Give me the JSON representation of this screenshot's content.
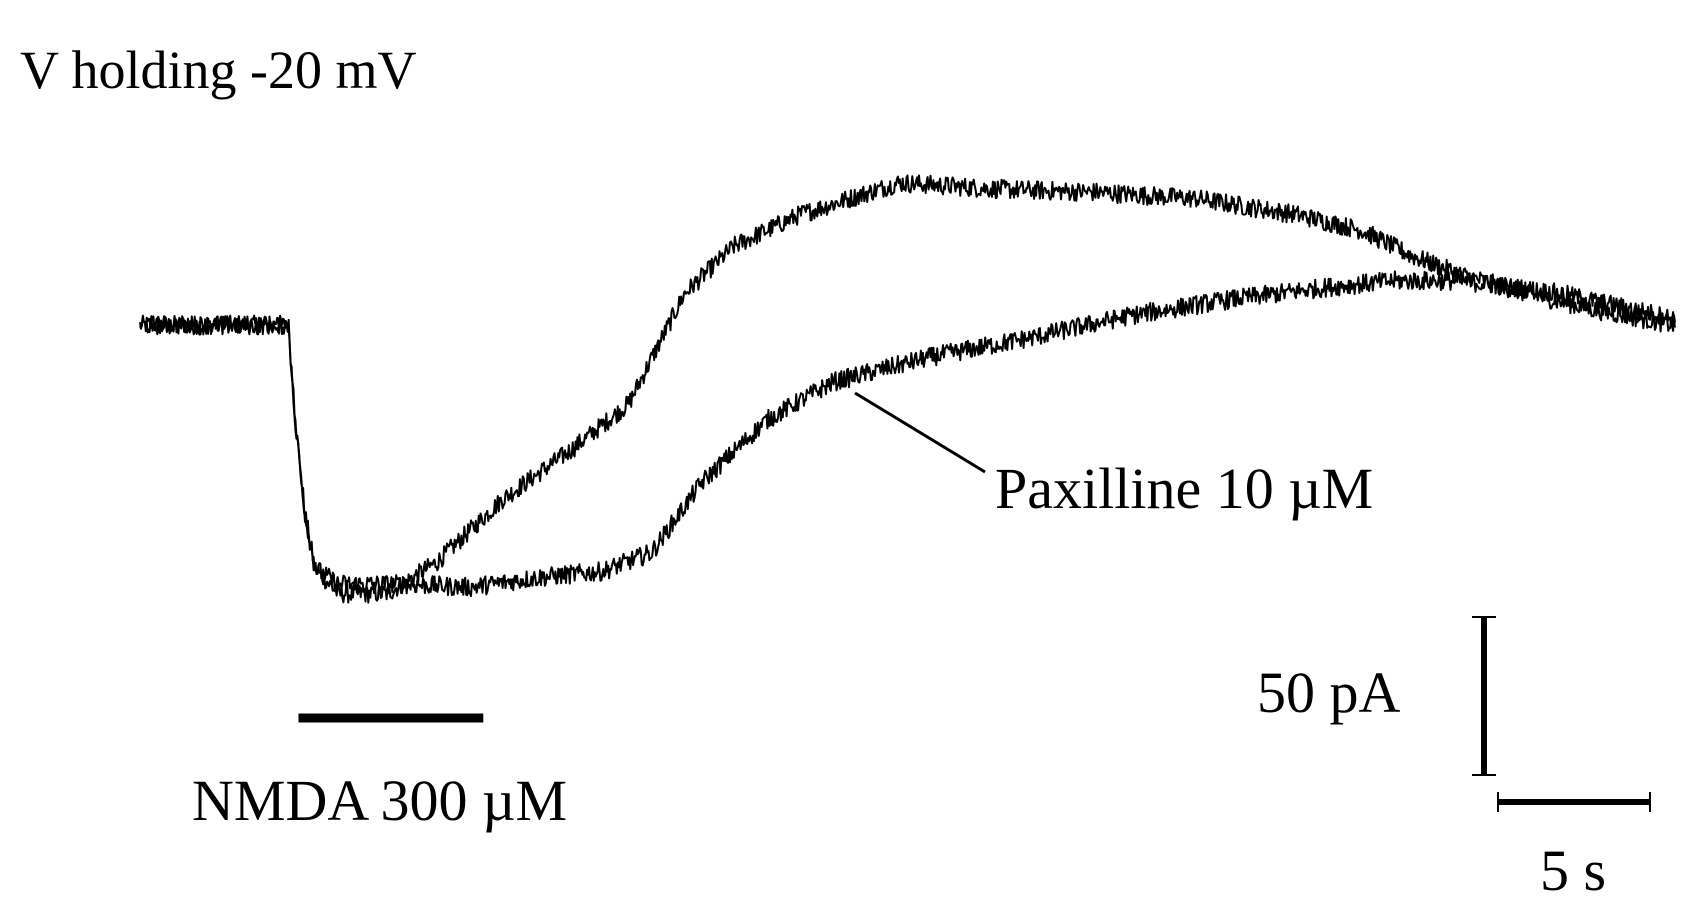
{
  "figure": {
    "title": "V holding -20 mV"
  },
  "chart_data": {
    "type": "line",
    "title": "V holding -20 mV",
    "xlabel": "",
    "ylabel": "",
    "x_unit": "s",
    "y_unit": "pA",
    "xlim": [
      0,
      46.5
    ],
    "ylim": [
      -95,
      60
    ],
    "series": [
      {
        "name": "",
        "points": [
          [
            0,
            0
          ],
          [
            4.5,
            0
          ],
          [
            4.7,
            -30
          ],
          [
            5.0,
            -60
          ],
          [
            5.3,
            -77
          ],
          [
            6.0,
            -85
          ],
          [
            7.5,
            -85
          ],
          [
            9.0,
            -75
          ],
          [
            11.0,
            -55
          ],
          [
            13.0,
            -40
          ],
          [
            14.8,
            -25
          ],
          [
            16.5,
            10
          ],
          [
            18.0,
            25
          ],
          [
            20.0,
            35
          ],
          [
            23.0,
            45
          ],
          [
            26.0,
            43
          ],
          [
            29.0,
            42
          ],
          [
            32.0,
            40
          ],
          [
            35.0,
            35
          ],
          [
            37.0,
            30
          ],
          [
            38.5,
            22
          ],
          [
            40.0,
            16
          ],
          [
            42.0,
            10
          ],
          [
            44.0,
            5
          ],
          [
            46.5,
            0
          ]
        ]
      },
      {
        "name": "Paxilline 10 µM",
        "points": [
          [
            0,
            0
          ],
          [
            4.5,
            0
          ],
          [
            4.7,
            -30
          ],
          [
            5.0,
            -60
          ],
          [
            5.3,
            -77
          ],
          [
            6.0,
            -82
          ],
          [
            8.0,
            -82
          ],
          [
            10.0,
            -83
          ],
          [
            12.0,
            -80
          ],
          [
            14.0,
            -78
          ],
          [
            15.5,
            -72
          ],
          [
            17.0,
            -50
          ],
          [
            19.0,
            -30
          ],
          [
            21.0,
            -18
          ],
          [
            24.0,
            -10
          ],
          [
            27.0,
            -4
          ],
          [
            30.0,
            3
          ],
          [
            33.0,
            8
          ],
          [
            36.0,
            12
          ],
          [
            38.0,
            14
          ],
          [
            40.0,
            14
          ],
          [
            43.0,
            10
          ],
          [
            46.5,
            2
          ]
        ]
      }
    ],
    "noise_pA": 3,
    "annotations": {
      "series_label": "Paxilline 10 µM",
      "drug_bar_label": "NMDA 300 µM",
      "drug_bar_start_s": 4.8,
      "drug_bar_end_s": 10.4
    },
    "scale_bar": {
      "current_label": "50 pA",
      "current_pA": 50,
      "time_label": "5 s",
      "time_s": 5
    }
  }
}
